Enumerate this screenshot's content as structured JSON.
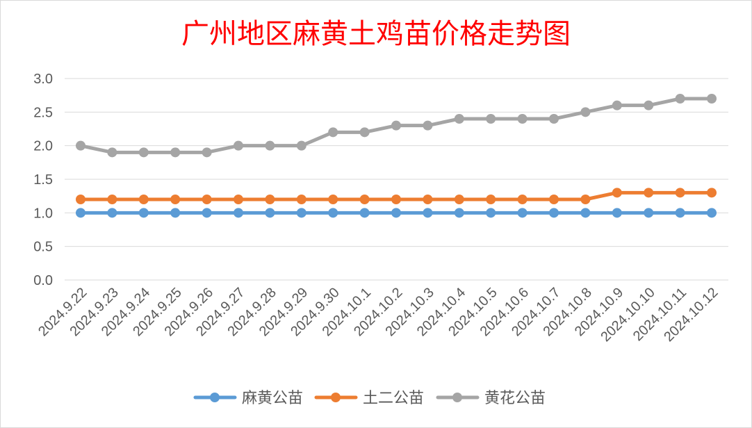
{
  "chart_data": {
    "type": "line",
    "title": "广州地区麻黄土鸡苗价格走势图",
    "categories": [
      "2024.9.22",
      "2024.9.23",
      "2024.9.24",
      "2024.9.25",
      "2024.9.26",
      "2024.9.27",
      "2024.9.28",
      "2024.9.29",
      "2024.9.30",
      "2024.10.1",
      "2024.10.2",
      "2024.10.3",
      "2024.10.4",
      "2024.10.5",
      "2024.10.6",
      "2024.10.7",
      "2024.10.8",
      "2024.10.9",
      "2024.10.10",
      "2024.10.11",
      "2024.10.12"
    ],
    "y_ticks": [
      "0.0",
      "0.5",
      "1.0",
      "1.5",
      "2.0",
      "2.5",
      "3.0"
    ],
    "ylim": [
      0,
      3.0
    ],
    "grid": true,
    "legend_position": "bottom",
    "series": [
      {
        "name": "麻黄公苗",
        "color": "#5b9bd5",
        "values": [
          1.0,
          1.0,
          1.0,
          1.0,
          1.0,
          1.0,
          1.0,
          1.0,
          1.0,
          1.0,
          1.0,
          1.0,
          1.0,
          1.0,
          1.0,
          1.0,
          1.0,
          1.0,
          1.0,
          1.0,
          1.0
        ]
      },
      {
        "name": "土二公苗",
        "color": "#ed7d31",
        "values": [
          1.2,
          1.2,
          1.2,
          1.2,
          1.2,
          1.2,
          1.2,
          1.2,
          1.2,
          1.2,
          1.2,
          1.2,
          1.2,
          1.2,
          1.2,
          1.2,
          1.2,
          1.3,
          1.3,
          1.3,
          1.3
        ]
      },
      {
        "name": "黄花公苗",
        "color": "#a5a5a5",
        "values": [
          2.0,
          1.9,
          1.9,
          1.9,
          1.9,
          2.0,
          2.0,
          2.0,
          2.2,
          2.2,
          2.3,
          2.3,
          2.4,
          2.4,
          2.4,
          2.4,
          2.5,
          2.6,
          2.6,
          2.7,
          2.7
        ]
      }
    ]
  }
}
